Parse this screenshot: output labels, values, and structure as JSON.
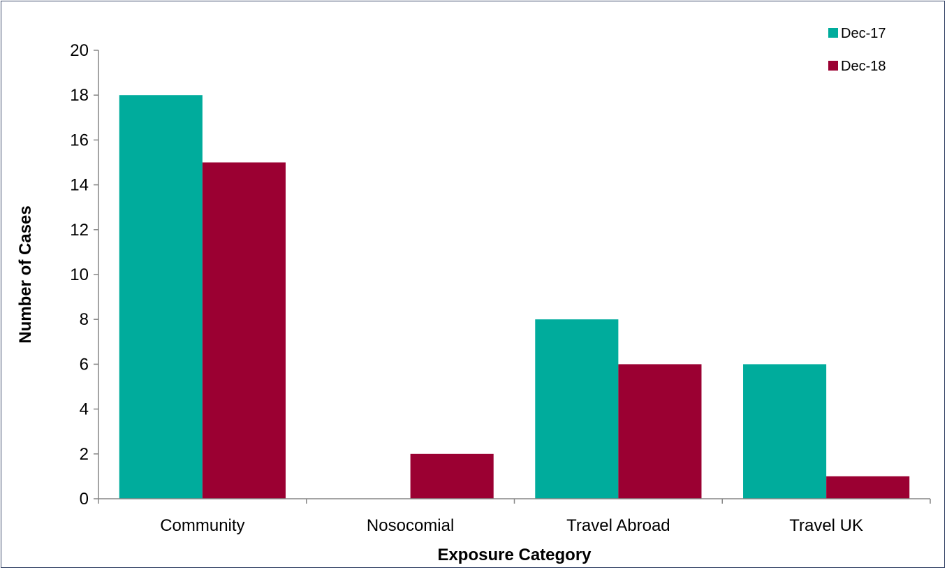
{
  "chart_data": {
    "type": "bar",
    "categories": [
      "Community",
      "Nosocomial",
      "Travel Abroad",
      "Travel UK"
    ],
    "series": [
      {
        "name": "Dec-17",
        "color": "#00ac9c",
        "values": [
          18,
          0,
          8,
          6
        ]
      },
      {
        "name": "Dec-18",
        "color": "#9b0032",
        "values": [
          15,
          2,
          6,
          1
        ]
      }
    ],
    "xlabel": "Exposure Category",
    "ylabel": "Number of Cases",
    "ylim": [
      0,
      20
    ],
    "yticks": [
      0,
      2,
      4,
      6,
      8,
      10,
      12,
      14,
      16,
      18,
      20
    ],
    "grid": false,
    "legend_position": "top-right"
  }
}
